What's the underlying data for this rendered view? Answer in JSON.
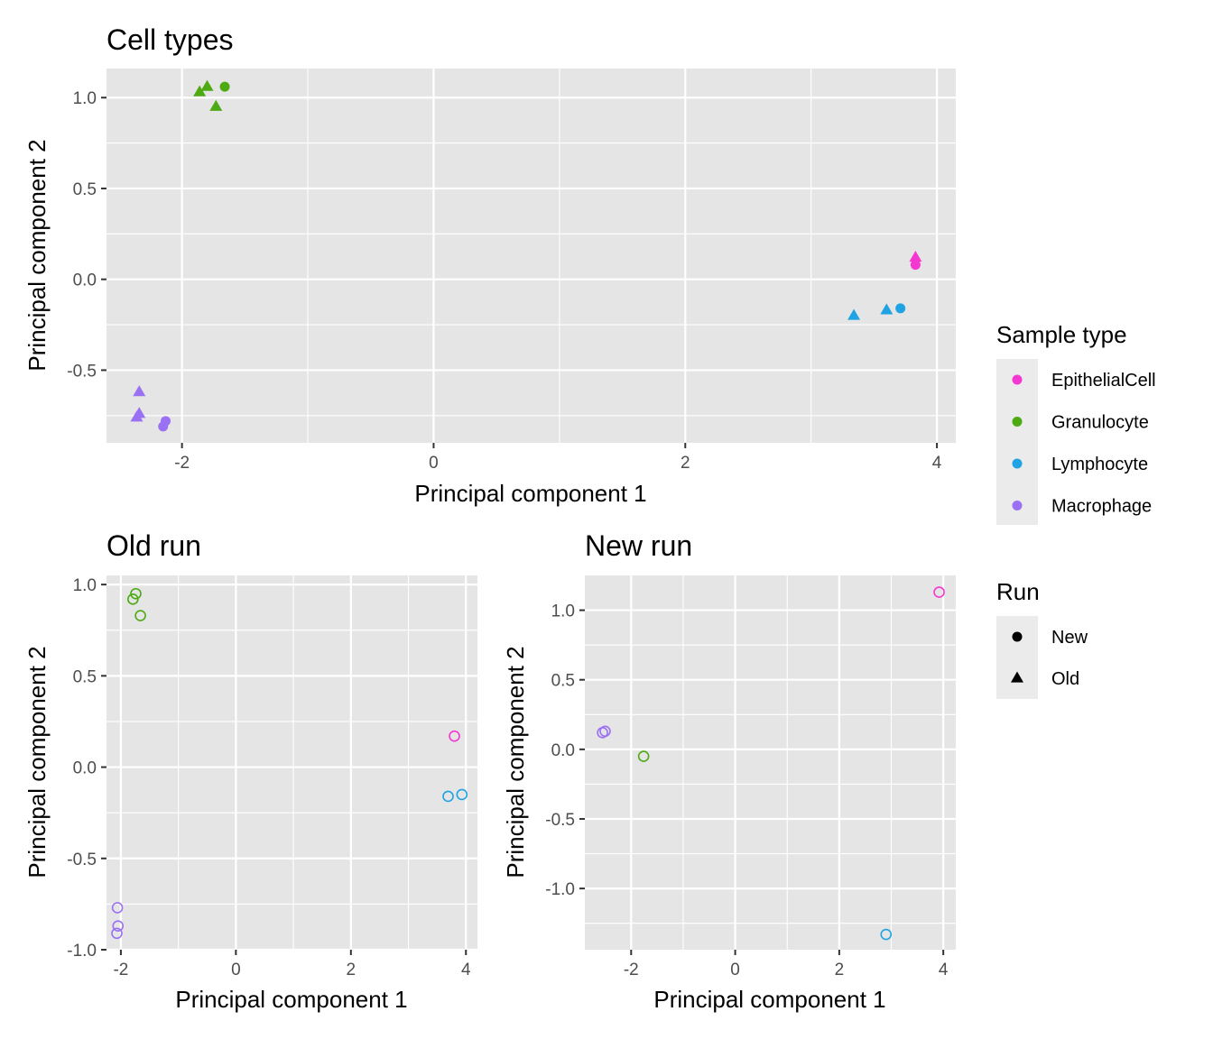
{
  "chart_data": [
    {
      "type": "scatter",
      "title": "Cell types",
      "xlabel": "Principal component 1",
      "ylabel": "Principal component 2",
      "xlim": [
        -2.6,
        4.15
      ],
      "ylim": [
        -0.9,
        1.16
      ],
      "xticks": [
        -2,
        0,
        2,
        4
      ],
      "yticks": [
        -0.5,
        0.0,
        0.5,
        1.0
      ],
      "ytick_labels": [
        "-0.5",
        "0.0",
        "0.5",
        "1.0"
      ],
      "grid": true,
      "points": [
        {
          "x": -1.86,
          "y": 1.03,
          "sample": "Granulocyte",
          "run": "Old"
        },
        {
          "x": -1.8,
          "y": 1.06,
          "sample": "Granulocyte",
          "run": "Old"
        },
        {
          "x": -1.73,
          "y": 0.95,
          "sample": "Granulocyte",
          "run": "Old"
        },
        {
          "x": -1.66,
          "y": 1.06,
          "sample": "Granulocyte",
          "run": "New"
        },
        {
          "x": 3.83,
          "y": 0.12,
          "sample": "EpithelialCell",
          "run": "Old"
        },
        {
          "x": 3.83,
          "y": 0.08,
          "sample": "EpithelialCell",
          "run": "New"
        },
        {
          "x": 3.34,
          "y": -0.2,
          "sample": "Lymphocyte",
          "run": "Old"
        },
        {
          "x": 3.6,
          "y": -0.17,
          "sample": "Lymphocyte",
          "run": "Old"
        },
        {
          "x": 3.71,
          "y": -0.16,
          "sample": "Lymphocyte",
          "run": "New"
        },
        {
          "x": -2.34,
          "y": -0.62,
          "sample": "Macrophage",
          "run": "Old"
        },
        {
          "x": -2.34,
          "y": -0.74,
          "sample": "Macrophage",
          "run": "Old"
        },
        {
          "x": -2.36,
          "y": -0.76,
          "sample": "Macrophage",
          "run": "Old"
        },
        {
          "x": -2.13,
          "y": -0.78,
          "sample": "Macrophage",
          "run": "New"
        },
        {
          "x": -2.15,
          "y": -0.81,
          "sample": "Macrophage",
          "run": "New"
        }
      ]
    },
    {
      "type": "scatter",
      "title": "Old run",
      "xlabel": "Principal component 1",
      "ylabel": "Principal component 2",
      "xlim": [
        -2.25,
        4.2
      ],
      "ylim": [
        -1.0,
        1.05
      ],
      "xticks": [
        -2,
        0,
        2,
        4
      ],
      "yticks": [
        -1.0,
        -0.5,
        0.0,
        0.5,
        1.0
      ],
      "ytick_labels": [
        "-1.0",
        "-0.5",
        "0.0",
        "0.5",
        "1.0"
      ],
      "grid": true,
      "marker": "open-circle",
      "points": [
        {
          "x": -1.79,
          "y": 0.92,
          "sample": "Granulocyte"
        },
        {
          "x": -1.74,
          "y": 0.95,
          "sample": "Granulocyte"
        },
        {
          "x": -1.66,
          "y": 0.83,
          "sample": "Granulocyte"
        },
        {
          "x": 3.8,
          "y": 0.17,
          "sample": "EpithelialCell"
        },
        {
          "x": 3.69,
          "y": -0.16,
          "sample": "Lymphocyte"
        },
        {
          "x": 3.93,
          "y": -0.15,
          "sample": "Lymphocyte"
        },
        {
          "x": -2.06,
          "y": -0.77,
          "sample": "Macrophage"
        },
        {
          "x": -2.05,
          "y": -0.87,
          "sample": "Macrophage"
        },
        {
          "x": -2.07,
          "y": -0.91,
          "sample": "Macrophage"
        }
      ]
    },
    {
      "type": "scatter",
      "title": "New run",
      "xlabel": "Principal component 1",
      "ylabel": "Principal component 2",
      "xlim": [
        -2.89,
        4.24
      ],
      "ylim": [
        -1.44,
        1.25
      ],
      "xticks": [
        -2,
        0,
        2,
        4
      ],
      "yticks": [
        -1.0,
        -0.5,
        0.0,
        0.5,
        1.0
      ],
      "ytick_labels": [
        "-1.0",
        "-0.5",
        "0.0",
        "0.5",
        "1.0"
      ],
      "grid": true,
      "marker": "open-circle",
      "points": [
        {
          "x": 3.92,
          "y": 1.13,
          "sample": "EpithelialCell"
        },
        {
          "x": -2.55,
          "y": 0.12,
          "sample": "Macrophage"
        },
        {
          "x": -2.5,
          "y": 0.13,
          "sample": "Macrophage"
        },
        {
          "x": -1.76,
          "y": -0.05,
          "sample": "Granulocyte"
        },
        {
          "x": 2.9,
          "y": -1.33,
          "sample": "Lymphocyte"
        }
      ]
    }
  ],
  "legend": {
    "placement": "right",
    "sample_type": {
      "title": "Sample type",
      "items": [
        {
          "label": "EpithelialCell",
          "color": "#f537d2"
        },
        {
          "label": "Granulocyte",
          "color": "#4daa12"
        },
        {
          "label": "Lymphocyte",
          "color": "#1fa3e3"
        },
        {
          "label": "Macrophage",
          "color": "#9b71f4"
        }
      ]
    },
    "run": {
      "title": "Run",
      "items": [
        {
          "label": "New",
          "shape": "circle"
        },
        {
          "label": "Old",
          "shape": "triangle"
        }
      ]
    }
  },
  "colors": {
    "panel_background": "#e5e5e5",
    "gridline": "#ffffff",
    "legend_key_background": "#ebebeb",
    "tick_label": "#4d4d4d"
  }
}
